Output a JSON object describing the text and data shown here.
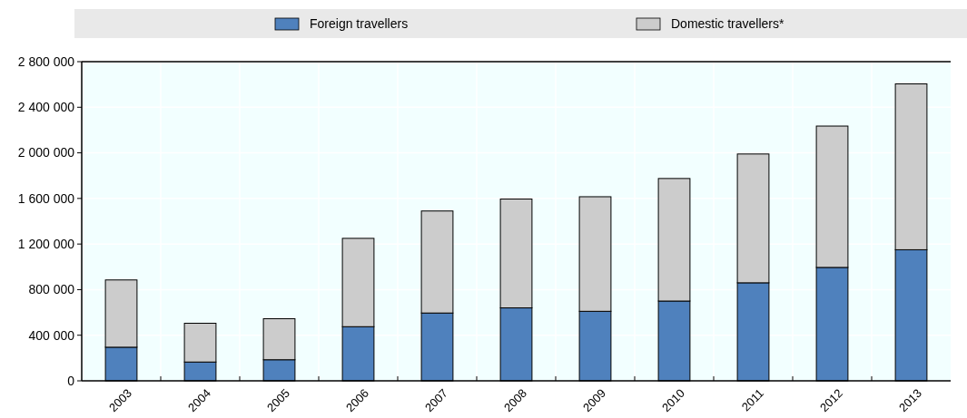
{
  "chart_data": {
    "type": "bar",
    "stacked": true,
    "categories": [
      "2003",
      "2004",
      "2005",
      "2006",
      "2007",
      "2008",
      "2009",
      "2010",
      "2011",
      "2012",
      "2013"
    ],
    "series": [
      {
        "name": "Foreign travellers",
        "color": "#4f81bd",
        "values": [
          295000,
          165000,
          185000,
          475000,
          595000,
          640000,
          610000,
          700000,
          860000,
          995000,
          1150000
        ]
      },
      {
        "name": "Domestic travellers*",
        "color": "#cccccc",
        "values": [
          590000,
          340000,
          360000,
          775000,
          895000,
          955000,
          1005000,
          1075000,
          1130000,
          1240000,
          1455000
        ]
      }
    ],
    "ylim": [
      0,
      2800000
    ],
    "yticks": [
      {
        "value": 0,
        "label": "0"
      },
      {
        "value": 400000,
        "label": "400 000"
      },
      {
        "value": 800000,
        "label": "800 000"
      },
      {
        "value": 1200000,
        "label": "1 200 000"
      },
      {
        "value": 1600000,
        "label": "1 600 000"
      },
      {
        "value": 2000000,
        "label": "2 000 000"
      },
      {
        "value": 2400000,
        "label": "2 400 000"
      },
      {
        "value": 2800000,
        "label": "2 800 000"
      }
    ],
    "grid": true,
    "legend": "top"
  }
}
